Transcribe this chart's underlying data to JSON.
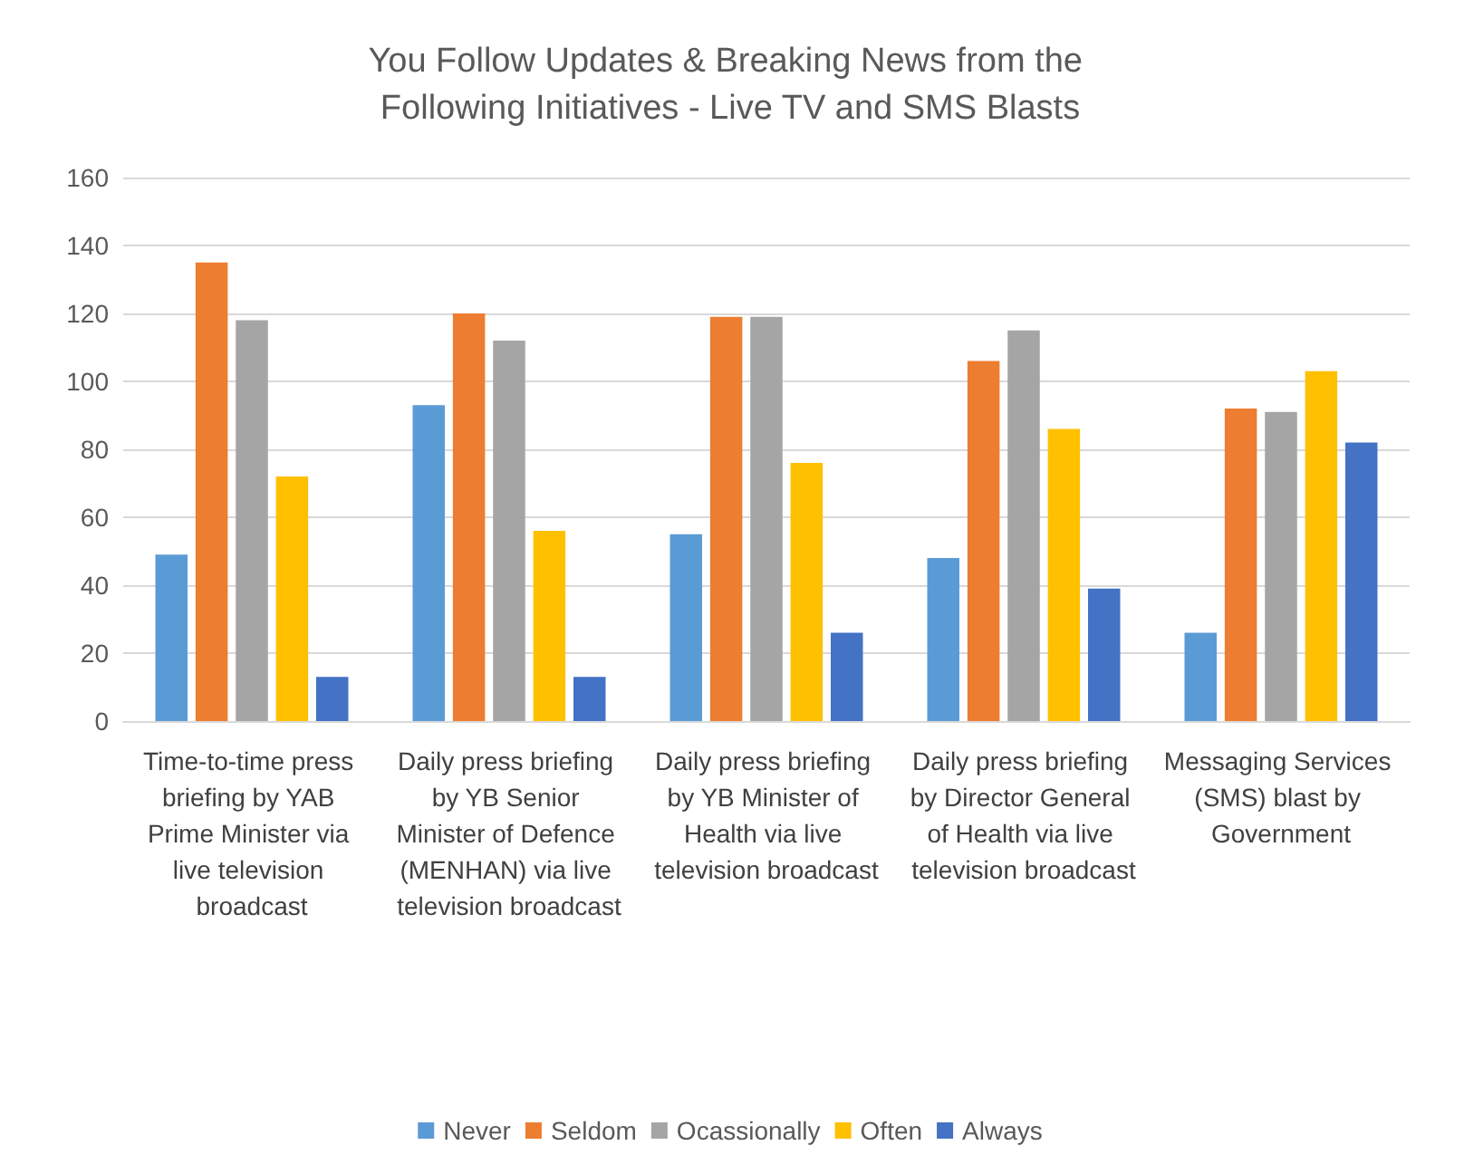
{
  "chart_data": {
    "type": "bar",
    "title": "You Follow Updates & Breaking News from the Following Initiatives - Live TV and SMS Blasts",
    "categories": [
      "Time-to-time press briefing by YAB Prime Minister via live television broadcast",
      "Daily press briefing by YB Senior Minister of Defence (MENHAN) via live television broadcast",
      "Daily press briefing by YB Minister of Health via live television broadcast",
      "Daily press briefing by Director General of Health via live television broadcast",
      "Messaging Services (SMS) blast by Government"
    ],
    "series": [
      {
        "name": "Never",
        "color": "#5b9bd5",
        "values": [
          49,
          93,
          55,
          48,
          26
        ]
      },
      {
        "name": "Seldom",
        "color": "#ed7d31",
        "values": [
          135,
          120,
          119,
          106,
          92
        ]
      },
      {
        "name": "Ocassionally",
        "color": "#a5a5a5",
        "values": [
          118,
          112,
          119,
          115,
          91
        ]
      },
      {
        "name": "Often",
        "color": "#ffc000",
        "values": [
          72,
          56,
          76,
          86,
          103
        ]
      },
      {
        "name": "Always",
        "color": "#4472c4",
        "values": [
          13,
          13,
          26,
          39,
          82
        ]
      }
    ],
    "ylim": [
      0,
      160
    ],
    "yticks": [
      0,
      20,
      40,
      60,
      80,
      100,
      120,
      140,
      160
    ],
    "grid": "y",
    "legend": "bottom"
  }
}
